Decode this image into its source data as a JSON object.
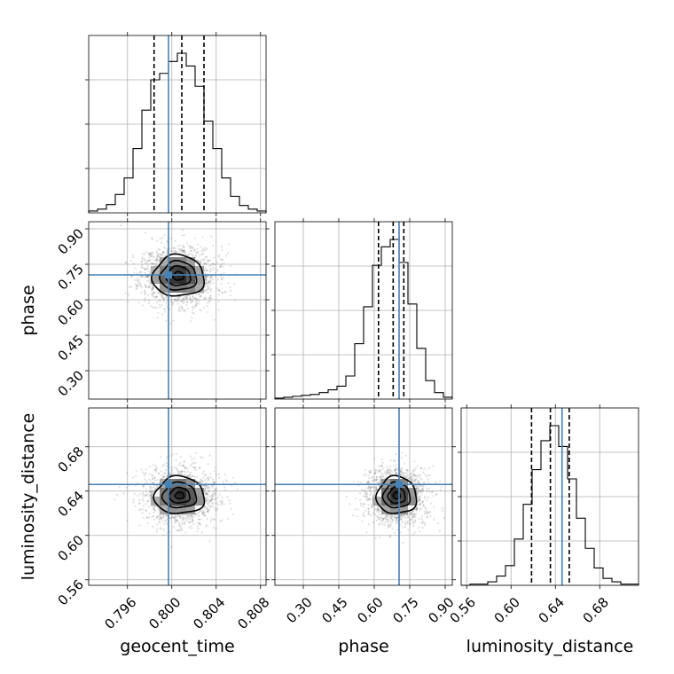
{
  "chart_data": {
    "type": "corner",
    "parameters": [
      "geocent_time",
      "phase",
      "luminosity_distance"
    ],
    "injection_color": "#4682b4",
    "axes": {
      "geocent_time": {
        "label": "geocent_time",
        "range": [
          0.7925,
          0.8085
        ],
        "ticks": [
          0.796,
          0.8,
          0.804,
          0.808
        ],
        "tick_labels": [
          "0.796",
          "0.800",
          "0.804",
          "0.808"
        ]
      },
      "phase": {
        "label": "phase",
        "range": [
          0.18,
          0.93
        ],
        "ticks": [
          0.3,
          0.45,
          0.6,
          0.75,
          0.9
        ],
        "tick_labels": [
          "0.30",
          "0.45",
          "0.60",
          "0.75",
          "0.90"
        ]
      },
      "luminosity_distance": {
        "label": "luminosity_distance",
        "range": [
          0.555,
          0.715
        ],
        "ticks": [
          0.56,
          0.6,
          0.64,
          0.68
        ],
        "tick_labels": [
          "0.56",
          "0.60",
          "0.64",
          "0.68"
        ]
      }
    },
    "injection": {
      "geocent_time": 0.7997,
      "phase": 0.705,
      "luminosity_distance": 0.646
    },
    "histograms": {
      "geocent_time": {
        "edges": [
          0.7925,
          0.7933,
          0.7941,
          0.7949,
          0.7957,
          0.7965,
          0.7973,
          0.7981,
          0.7989,
          0.7997,
          0.8005,
          0.8013,
          0.8021,
          0.8029,
          0.8037,
          0.8045,
          0.8053,
          0.8061,
          0.8069,
          0.8077,
          0.8085
        ],
        "counts": [
          2,
          4,
          9,
          20,
          38,
          70,
          112,
          145,
          152,
          165,
          174,
          160,
          138,
          100,
          70,
          38,
          18,
          8,
          4,
          2
        ],
        "quantiles": [
          0.7984,
          0.8009,
          0.8029
        ]
      },
      "phase": {
        "edges": [
          0.18,
          0.2175,
          0.255,
          0.2925,
          0.33,
          0.3675,
          0.405,
          0.4425,
          0.48,
          0.5175,
          0.555,
          0.5925,
          0.63,
          0.6675,
          0.705,
          0.7425,
          0.78,
          0.8175,
          0.855,
          0.8925,
          0.93
        ],
        "counts": [
          1,
          2,
          3,
          4,
          5,
          7,
          10,
          14,
          25,
          60,
          100,
          145,
          165,
          173,
          148,
          103,
          55,
          20,
          7,
          2
        ],
        "quantiles": [
          0.618,
          0.68,
          0.725
        ]
      },
      "luminosity_distance": {
        "edges": [
          0.555,
          0.563,
          0.571,
          0.579,
          0.587,
          0.595,
          0.603,
          0.611,
          0.619,
          0.627,
          0.635,
          0.643,
          0.651,
          0.659,
          0.667,
          0.675,
          0.683,
          0.691,
          0.699,
          0.707,
          0.715
        ],
        "counts": [
          0,
          1,
          1,
          3,
          8,
          17,
          40,
          70,
          100,
          125,
          138,
          120,
          92,
          58,
          32,
          15,
          6,
          3,
          1,
          1
        ],
        "quantiles": [
          0.6185,
          0.6355,
          0.6525
        ]
      }
    },
    "pairs": [
      {
        "x": "geocent_time",
        "y": "phase",
        "center": [
          0.8006,
          0.7
        ],
        "sd": [
          0.0016,
          0.06
        ],
        "levels": [
          0.3,
          0.68,
          1.02,
          1.45
        ]
      },
      {
        "x": "geocent_time",
        "y": "luminosity_distance",
        "center": [
          0.8007,
          0.636
        ],
        "sd": [
          0.0016,
          0.012
        ],
        "levels": [
          0.25,
          0.58,
          0.95,
          1.4
        ]
      },
      {
        "x": "phase",
        "y": "luminosity_distance",
        "center": [
          0.695,
          0.636
        ],
        "sd": [
          0.06,
          0.012
        ],
        "levels": [
          0.25,
          0.6,
          0.95,
          1.4
        ]
      }
    ]
  }
}
